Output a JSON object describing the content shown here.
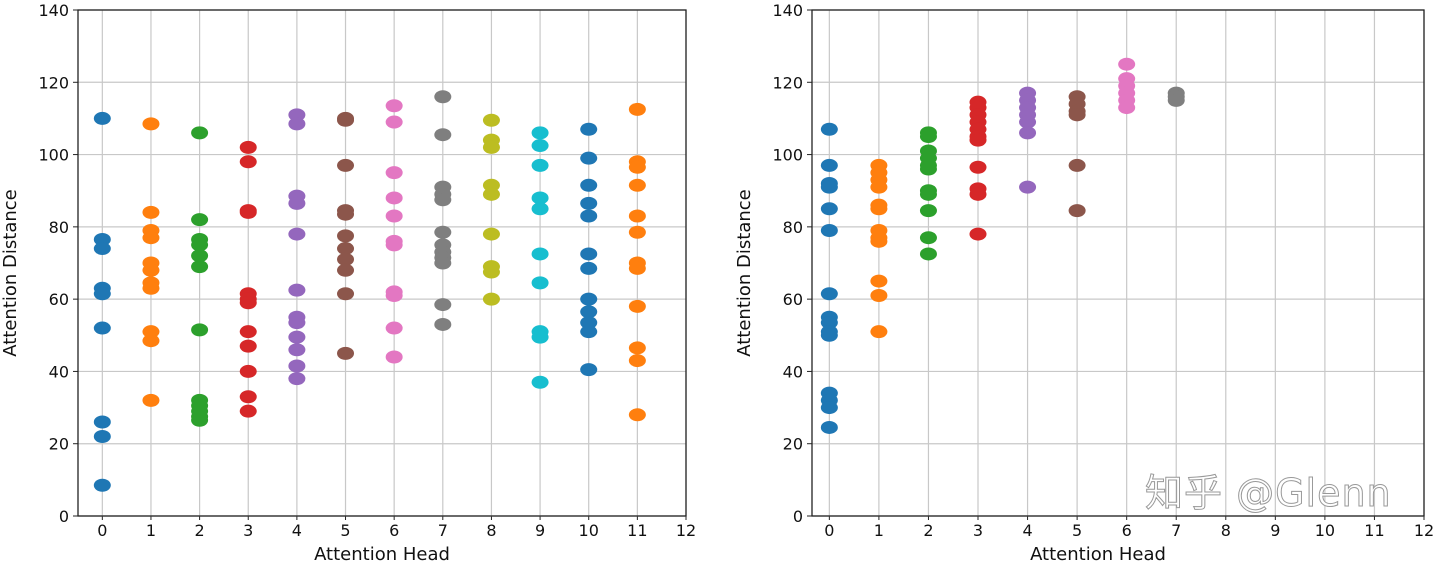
{
  "colors": [
    "#1f77b4",
    "#ff7f0e",
    "#2ca02c",
    "#d62728",
    "#9467bd",
    "#8c564b",
    "#e377c2",
    "#7f7f7f",
    "#bcbd22",
    "#17becf",
    "#1f77b4",
    "#ff7f0e"
  ],
  "watermark": "知乎 @Glenn",
  "chart_data": [
    {
      "type": "scatter",
      "title": "",
      "xlabel": "Attention Head",
      "ylabel": "Attention Distance",
      "xlim": [
        -0.5,
        12
      ],
      "ylim": [
        0,
        140
      ],
      "xticks": [
        "0",
        "1",
        "2",
        "3",
        "4",
        "5",
        "6",
        "7",
        "8",
        "9",
        "10",
        "11",
        "12"
      ],
      "yticks": [
        "0",
        "20",
        "40",
        "60",
        "80",
        "100",
        "120",
        "140"
      ],
      "grid": true,
      "series": [
        {
          "head": 0,
          "values": [
            110,
            76.5,
            74,
            63,
            61.5,
            52,
            26,
            22,
            8.5
          ]
        },
        {
          "head": 1,
          "values": [
            108.5,
            84,
            79,
            77,
            70,
            68,
            64.5,
            63,
            51,
            48.5,
            32
          ]
        },
        {
          "head": 2,
          "values": [
            106,
            82,
            76.5,
            75,
            72,
            69,
            51.5,
            32,
            30.5,
            29,
            27.5,
            26.5
          ]
        },
        {
          "head": 3,
          "values": [
            102,
            98,
            84.5,
            84,
            61.5,
            60,
            59,
            51,
            47,
            40,
            33,
            29
          ]
        },
        {
          "head": 4,
          "values": [
            111,
            108.5,
            88.5,
            86.5,
            78,
            62.5,
            55,
            53.5,
            49.5,
            46,
            41.5,
            38
          ]
        },
        {
          "head": 5,
          "values": [
            110,
            109.5,
            97,
            84.5,
            83.5,
            77.5,
            74,
            71,
            68,
            61.5,
            45
          ]
        },
        {
          "head": 6,
          "values": [
            113.5,
            109,
            95,
            88,
            83,
            76,
            75,
            62,
            61,
            52,
            44
          ]
        },
        {
          "head": 7,
          "values": [
            116,
            105.5,
            91,
            89,
            87.5,
            78.5,
            75,
            73,
            71.5,
            70,
            58.5,
            53
          ]
        },
        {
          "head": 8,
          "values": [
            109.5,
            104,
            102,
            91.5,
            89,
            78,
            69,
            67.5,
            60
          ]
        },
        {
          "head": 9,
          "values": [
            106,
            102.5,
            97,
            88,
            85,
            72.5,
            64.5,
            51,
            49.5,
            37
          ]
        },
        {
          "head": 10,
          "values": [
            107,
            99,
            91.5,
            86.5,
            83,
            72.5,
            68.5,
            60,
            56.5,
            53.5,
            51,
            40.5
          ]
        },
        {
          "head": 11,
          "values": [
            112.5,
            98,
            96.5,
            91.5,
            83,
            78.5,
            70,
            68.5,
            58,
            46.5,
            43,
            28
          ]
        }
      ]
    },
    {
      "type": "scatter",
      "title": "",
      "xlabel": "Attention Head",
      "ylabel": "Attention Distance",
      "xlim": [
        -0.35,
        12
      ],
      "ylim": [
        0,
        140
      ],
      "xticks": [
        "0",
        "1",
        "2",
        "3",
        "4",
        "5",
        "6",
        "7",
        "8",
        "9",
        "10",
        "11",
        "12"
      ],
      "yticks": [
        "0",
        "20",
        "40",
        "60",
        "80",
        "100",
        "120",
        "140"
      ],
      "grid": true,
      "series": [
        {
          "head": 0,
          "values": [
            107,
            97,
            92,
            91,
            85,
            79,
            61.5,
            55,
            53.5,
            51,
            50,
            34,
            32,
            30,
            24.5
          ]
        },
        {
          "head": 1,
          "values": [
            97,
            95,
            93,
            91,
            86,
            85,
            79,
            77,
            76,
            65,
            61,
            51
          ]
        },
        {
          "head": 2,
          "values": [
            106,
            105,
            101,
            99,
            97,
            96,
            90,
            89,
            84.5,
            77,
            72.5
          ]
        },
        {
          "head": 3,
          "values": [
            114.5,
            113,
            111,
            109,
            107,
            105,
            104,
            96.5,
            90.5,
            89,
            78
          ]
        },
        {
          "head": 4,
          "values": [
            117,
            115,
            113,
            111,
            109,
            106,
            91
          ]
        },
        {
          "head": 5,
          "values": [
            116,
            114,
            112,
            111,
            97,
            84.5
          ]
        },
        {
          "head": 6,
          "values": [
            125,
            121,
            119,
            117,
            115,
            113
          ]
        },
        {
          "head": 7,
          "values": [
            117,
            116,
            115
          ]
        }
      ]
    }
  ]
}
